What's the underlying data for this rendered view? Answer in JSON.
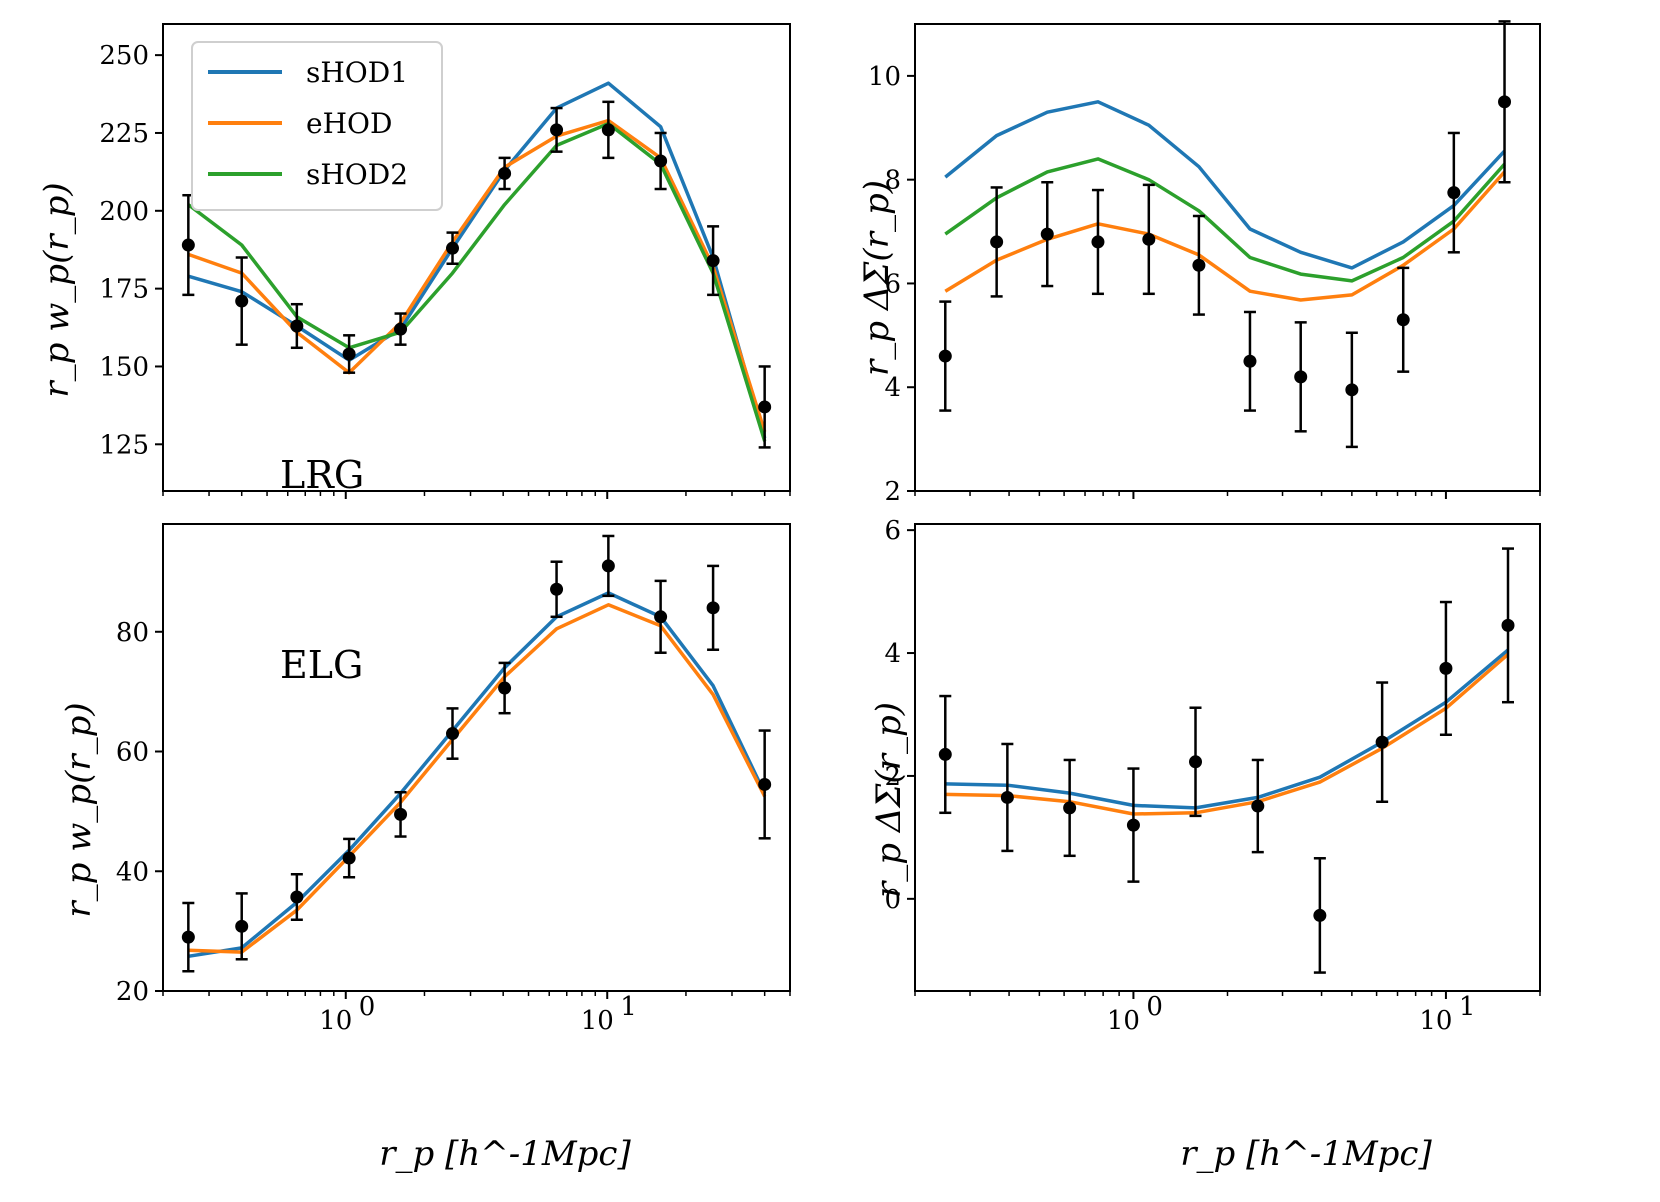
{
  "figure": {
    "xlabel_bottom_left": "r_p [h^-1Mpc]",
    "xlabel_bottom_right": "r_p [h^-1Mpc]"
  },
  "colors": {
    "sHOD1": "#1f77b4",
    "eHOD": "#ff7f0e",
    "sHOD2": "#2ca02c",
    "data": "#000000"
  },
  "legend": {
    "location": "upper-left of top-left panel",
    "entries": [
      "sHOD1",
      "eHOD",
      "sHOD2"
    ]
  },
  "chart_data": [
    {
      "id": "lrg_wp",
      "type": "line",
      "annotation": "LRG",
      "ylabel": "r_p w_p(r_p)",
      "xscale": "log",
      "xlim": [
        0.2,
        50
      ],
      "ylim": [
        110,
        260
      ],
      "yticks": [
        125,
        150,
        175,
        200,
        225,
        250
      ],
      "x": [
        0.25,
        0.4,
        0.65,
        1.03,
        1.62,
        2.56,
        4.05,
        6.4,
        10.1,
        16,
        25.4,
        40
      ],
      "series": [
        {
          "name": "sHOD1",
          "values": [
            179,
            174,
            163,
            152,
            162,
            188,
            213,
            233,
            241,
            227,
            185,
            127
          ]
        },
        {
          "name": "eHOD",
          "values": [
            186,
            180,
            161,
            148,
            164,
            190,
            214,
            224,
            229,
            217,
            182,
            129
          ]
        },
        {
          "name": "sHOD2",
          "values": [
            202,
            189,
            166,
            156,
            161,
            180,
            202,
            221,
            228,
            215,
            180,
            126
          ]
        }
      ],
      "data_points": {
        "y": [
          189,
          171,
          163,
          154,
          162,
          188,
          212,
          226,
          226,
          216,
          184,
          137
        ],
        "err": [
          16,
          14,
          7,
          6,
          5,
          5,
          5,
          7,
          9,
          9,
          11,
          13
        ]
      }
    },
    {
      "id": "lrg_ds",
      "type": "line",
      "ylabel": "r_p ΔΣ(r_p)",
      "xscale": "log",
      "xlim": [
        0.2,
        20
      ],
      "ylim": [
        2,
        11
      ],
      "yticks": [
        2,
        4,
        6,
        8,
        10
      ],
      "x": [
        0.25,
        0.365,
        0.53,
        0.77,
        1.12,
        1.62,
        2.36,
        3.43,
        5.0,
        7.3,
        10.6,
        15.4
      ],
      "series": [
        {
          "name": "sHOD1",
          "values": [
            8.05,
            8.85,
            9.3,
            9.5,
            9.05,
            8.25,
            7.05,
            6.6,
            6.3,
            6.8,
            7.5,
            8.55
          ]
        },
        {
          "name": "eHOD",
          "values": [
            5.85,
            6.45,
            6.85,
            7.15,
            6.95,
            6.55,
            5.85,
            5.68,
            5.78,
            6.35,
            7.05,
            8.15
          ]
        },
        {
          "name": "sHOD2",
          "values": [
            6.95,
            7.65,
            8.15,
            8.4,
            8.0,
            7.4,
            6.5,
            6.18,
            6.05,
            6.5,
            7.2,
            8.3
          ]
        }
      ],
      "data_points": {
        "y": [
          4.6,
          6.8,
          6.95,
          6.8,
          6.85,
          6.35,
          4.5,
          4.2,
          3.95,
          5.3,
          7.75,
          9.5
        ],
        "err": [
          1.05,
          1.05,
          1.0,
          1.0,
          1.05,
          0.95,
          0.95,
          1.05,
          1.1,
          1.0,
          1.15,
          1.55
        ]
      }
    },
    {
      "id": "elg_wp",
      "type": "line",
      "annotation": "ELG",
      "ylabel": "r_p w_p(r_p)",
      "xlabel": "r_p [h^-1Mpc]",
      "xscale": "log",
      "xlim": [
        0.2,
        50
      ],
      "xtick_labels": [
        "10^0",
        "10^1"
      ],
      "ylim": [
        20,
        98
      ],
      "yticks": [
        20,
        40,
        60,
        80
      ],
      "x": [
        0.25,
        0.4,
        0.65,
        1.03,
        1.62,
        2.56,
        4.05,
        6.4,
        10.1,
        16,
        25.4,
        40
      ],
      "series": [
        {
          "name": "sHOD1",
          "values": [
            25.8,
            27.2,
            34.8,
            43.5,
            53,
            63.5,
            74,
            82.5,
            86.5,
            82.5,
            71,
            53
          ]
        },
        {
          "name": "eHOD",
          "values": [
            26.8,
            26.5,
            33.5,
            42.5,
            51.5,
            62,
            72.5,
            80.5,
            84.5,
            81,
            69.5,
            52.5
          ]
        }
      ],
      "data_points": {
        "y": [
          29,
          30.8,
          35.7,
          42.2,
          49.5,
          63,
          70.6,
          87.1,
          91,
          82.5,
          84,
          54.5
        ],
        "err": [
          5.7,
          5.5,
          3.8,
          3.2,
          3.7,
          4.2,
          4.2,
          4.6,
          5.0,
          6.0,
          7.0,
          9.0
        ]
      }
    },
    {
      "id": "elg_ds",
      "type": "line",
      "ylabel": "r_p ΔΣ(r_p)",
      "xlabel": "r_p [h^-1Mpc]",
      "xscale": "log",
      "xlim": [
        0.2,
        20
      ],
      "xtick_labels": [
        "10^0",
        "10^1"
      ],
      "ylim": [
        -1.5,
        6.1
      ],
      "yticks": [
        0,
        2,
        4,
        6
      ],
      "x": [
        0.25,
        0.395,
        0.625,
        1.0,
        1.58,
        2.5,
        3.95,
        6.25,
        10.0,
        15.8
      ],
      "series": [
        {
          "name": "sHOD1",
          "values": [
            1.87,
            1.85,
            1.72,
            1.52,
            1.48,
            1.65,
            1.98,
            2.55,
            3.2,
            4.05
          ]
        },
        {
          "name": "eHOD",
          "values": [
            1.7,
            1.68,
            1.58,
            1.38,
            1.4,
            1.58,
            1.9,
            2.45,
            3.1,
            3.98
          ]
        }
      ],
      "data_points": {
        "y": [
          2.35,
          1.65,
          1.48,
          1.2,
          2.23,
          1.51,
          -0.27,
          2.55,
          3.75,
          4.45
        ],
        "err": [
          0.95,
          0.87,
          0.78,
          0.92,
          0.88,
          0.75,
          0.93,
          0.97,
          1.08,
          1.25
        ]
      }
    }
  ]
}
